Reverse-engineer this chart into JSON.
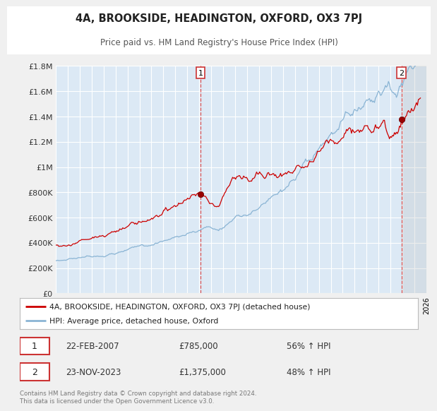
{
  "title": "4A, BROOKSIDE, HEADINGTON, OXFORD, OX3 7PJ",
  "subtitle": "Price paid vs. HM Land Registry's House Price Index (HPI)",
  "ylim": [
    0,
    1800000
  ],
  "xlim_start": 1995.0,
  "xlim_end": 2026.0,
  "plot_bg_color": "#dce9f5",
  "fig_bg_color": "#f0f0f0",
  "grid_color": "#ffffff",
  "sale1_year": 2007.13,
  "sale1_price": 785000,
  "sale2_year": 2023.9,
  "sale2_price": 1375000,
  "property_line_color": "#cc0000",
  "hpi_line_color": "#8ab4d4",
  "legend_property": "4A, BROOKSIDE, HEADINGTON, OXFORD, OX3 7PJ (detached house)",
  "legend_hpi": "HPI: Average price, detached house, Oxford",
  "annotation1_date": "22-FEB-2007",
  "annotation1_price": "£785,000",
  "annotation1_hpi": "56% ↑ HPI",
  "annotation2_date": "23-NOV-2023",
  "annotation2_price": "£1,375,000",
  "annotation2_hpi": "48% ↑ HPI",
  "footer": "Contains HM Land Registry data © Crown copyright and database right 2024.\nThis data is licensed under the Open Government Licence v3.0.",
  "yticks": [
    0,
    200000,
    400000,
    600000,
    800000,
    1000000,
    1200000,
    1400000,
    1600000,
    1800000
  ],
  "ytick_labels": [
    "£0",
    "£200K",
    "£400K",
    "£600K",
    "£800K",
    "£1M",
    "£1.2M",
    "£1.4M",
    "£1.6M",
    "£1.8M"
  ]
}
